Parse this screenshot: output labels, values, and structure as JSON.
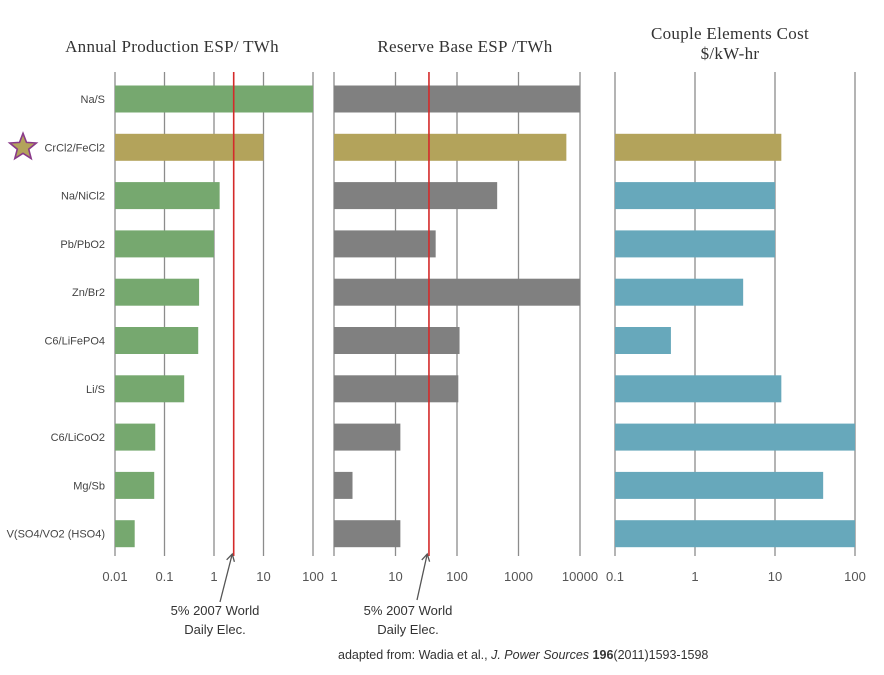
{
  "chart_data": {
    "type": "bar",
    "orientation": "horizontal",
    "categories": [
      "Na/S",
      "CrCl2/FeCl2",
      "Na/NiCl2",
      "Pb/PbO2",
      "Zn/Br2",
      "C6/LiFePO4",
      "Li/S",
      "C6/LiCoO2",
      "Mg/Sb",
      "V(SO4/VO2 (HSO4)"
    ],
    "highlighted_category": "CrCl2/FeCl2",
    "highlight_marker": "star-icon",
    "panels": [
      {
        "title_lines": [
          "Annual Production ESP/ TWh"
        ],
        "xscale": "log",
        "xlim": [
          0.01,
          100
        ],
        "ticks": [
          0.01,
          0.1,
          1,
          10,
          100
        ],
        "tick_labels": [
          "0.01",
          "0.1",
          "1",
          "10",
          "100"
        ],
        "color": "#76a86f",
        "highlight_color": "#b3a35b",
        "values": [
          100,
          10,
          1.3,
          1,
          0.5,
          0.48,
          0.25,
          0.065,
          0.062,
          0.025
        ],
        "reference": {
          "value": 2.5,
          "label_lines": [
            "5% 2007 World",
            "Daily Elec."
          ]
        }
      },
      {
        "title_lines": [
          "Reserve Base ESP /TWh"
        ],
        "xscale": "log",
        "xlim": [
          1,
          10000
        ],
        "ticks": [
          1,
          10,
          100,
          1000,
          10000
        ],
        "tick_labels": [
          "1",
          "10",
          "100",
          "1000",
          "10000"
        ],
        "color": "#808080",
        "highlight_color": "#b3a35b",
        "values": [
          10000,
          6000,
          450,
          45,
          10000,
          110,
          105,
          12,
          2,
          12
        ],
        "reference": {
          "value": 35,
          "label_lines": [
            "5% 2007 World",
            "Daily Elec."
          ]
        }
      },
      {
        "title_lines": [
          "Couple Elements Cost",
          "$/kW-hr"
        ],
        "xscale": "log",
        "xlim": [
          0.1,
          100
        ],
        "ticks": [
          0.1,
          1,
          10,
          100
        ],
        "tick_labels": [
          "0.1",
          "1",
          "10",
          "100"
        ],
        "color": "#67a8bb",
        "highlight_color": "#b3a35b",
        "values": [
          null,
          12,
          10,
          10,
          4,
          0.5,
          12,
          100,
          40,
          100
        ],
        "reference": null
      }
    ],
    "grid": "vertical"
  },
  "citation": {
    "prefix": "adapted from:  Wadia et al., ",
    "journal": "J. Power Sources",
    "volume": "196",
    "pages": "(2011)1593-1598"
  }
}
